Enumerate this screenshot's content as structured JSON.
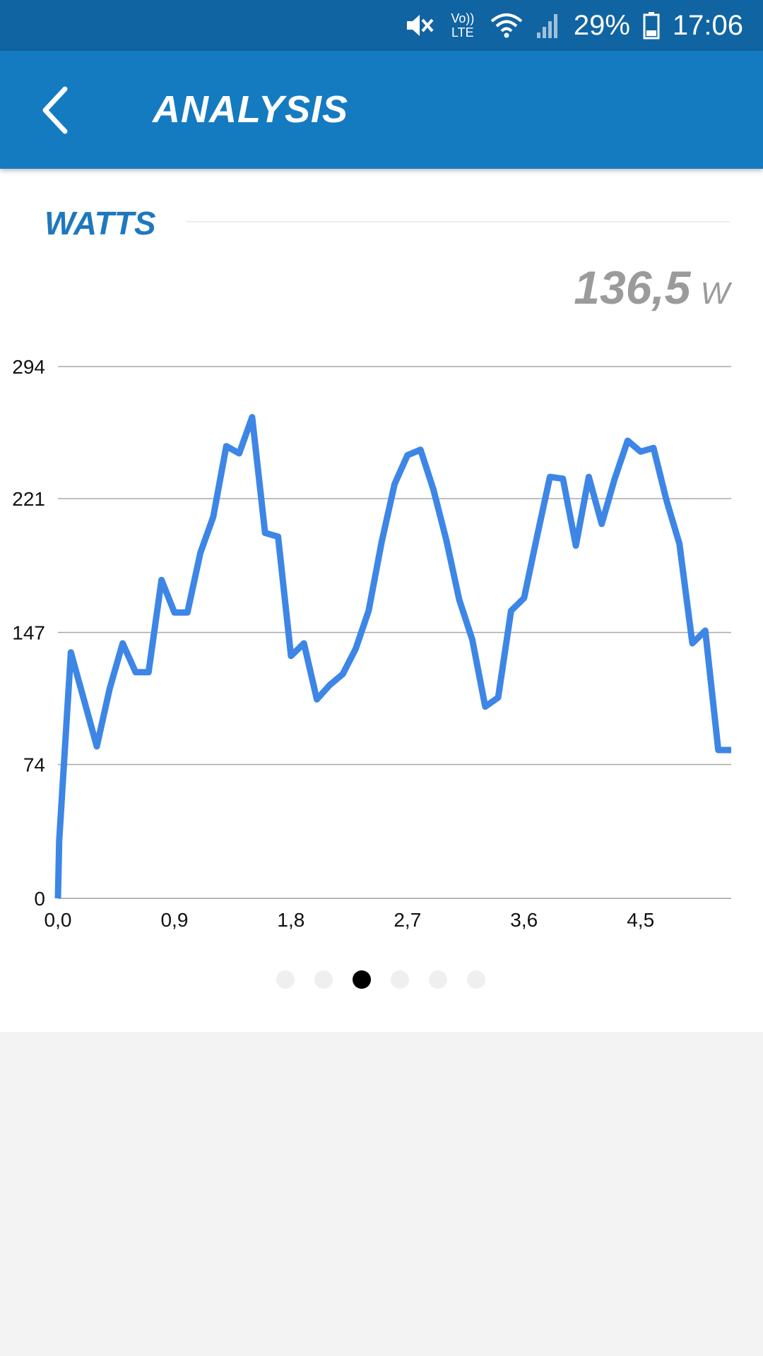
{
  "status_bar": {
    "battery": "29%",
    "time": "17:06",
    "network": "Vo)) LTE",
    "icons": [
      "mute-icon",
      "volte-icon",
      "wifi-icon",
      "signal-icon",
      "battery-icon"
    ]
  },
  "app_bar": {
    "title": "ANALYSIS",
    "back_icon": "chevron-left-icon"
  },
  "section": {
    "title": "WATTS",
    "value": "136,5",
    "unit": "W"
  },
  "pager": {
    "count": 6,
    "active_index": 2
  },
  "colors": {
    "status_bar": "#1164a2",
    "app_bar": "#157bc1",
    "accent": "#1f78bd",
    "line": "#3d86e6"
  },
  "chart_data": {
    "type": "line",
    "title": "",
    "xlabel": "",
    "ylabel": "",
    "xlim": [
      0,
      5.2
    ],
    "ylim": [
      0,
      294
    ],
    "y_ticks": [
      "0",
      "74",
      "147",
      "221",
      "294"
    ],
    "x_ticks": [
      "0,0",
      "0,9",
      "1,8",
      "2,7",
      "3,6",
      "4,5"
    ],
    "grid": true,
    "series": [
      {
        "x": [
          0,
          0.01,
          0.1,
          0.2,
          0.3,
          0.4,
          0.5,
          0.6,
          0.7,
          0.8,
          0.9,
          1.0,
          1.1,
          1.2,
          1.3,
          1.4,
          1.5,
          1.6,
          1.7,
          1.8,
          1.9,
          2.0,
          2.1,
          2.2,
          2.3,
          2.4,
          2.5,
          2.6,
          2.7,
          2.8,
          2.9,
          3.0,
          3.1,
          3.2,
          3.3,
          3.4,
          3.5,
          3.6,
          3.7,
          3.8,
          3.9,
          4.0,
          4.1,
          4.2,
          4.3,
          4.4,
          4.5,
          4.6,
          4.7,
          4.8,
          4.9,
          5.0,
          5.1,
          5.2
        ],
        "y": [
          0,
          32,
          136,
          110,
          84,
          116,
          141,
          125,
          125,
          176,
          158,
          158,
          191,
          211,
          250,
          246,
          266,
          202,
          200,
          134,
          141,
          110,
          118,
          124,
          138,
          159,
          197,
          229,
          245,
          248,
          226,
          198,
          165,
          143,
          106,
          111,
          159,
          166,
          200,
          233,
          232,
          195,
          233,
          207,
          232,
          253,
          247,
          249,
          220,
          196,
          141,
          148,
          82,
          82
        ]
      }
    ]
  }
}
